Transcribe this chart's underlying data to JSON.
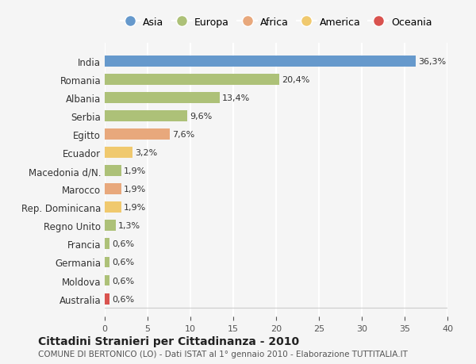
{
  "categories": [
    "India",
    "Romania",
    "Albania",
    "Serbia",
    "Egitto",
    "Ecuador",
    "Macedonia d/N.",
    "Marocco",
    "Rep. Dominicana",
    "Regno Unito",
    "Francia",
    "Germania",
    "Moldova",
    "Australia"
  ],
  "values": [
    36.3,
    20.4,
    13.4,
    9.6,
    7.6,
    3.2,
    1.9,
    1.9,
    1.9,
    1.3,
    0.6,
    0.6,
    0.6,
    0.6
  ],
  "labels": [
    "36,3%",
    "20,4%",
    "13,4%",
    "9,6%",
    "7,6%",
    "3,2%",
    "1,9%",
    "1,9%",
    "1,9%",
    "1,3%",
    "0,6%",
    "0,6%",
    "0,6%",
    "0,6%"
  ],
  "colors": [
    "#6699cc",
    "#adc178",
    "#adc178",
    "#adc178",
    "#e8a87c",
    "#f0c96e",
    "#adc178",
    "#e8a87c",
    "#f0c96e",
    "#adc178",
    "#adc178",
    "#adc178",
    "#adc178",
    "#d9534f"
  ],
  "continent_colors": {
    "Asia": "#6699cc",
    "Europa": "#adc178",
    "Africa": "#e8a87c",
    "America": "#f0c96e",
    "Oceania": "#d9534f"
  },
  "legend_labels": [
    "Asia",
    "Europa",
    "Africa",
    "America",
    "Oceania"
  ],
  "title": "Cittadini Stranieri per Cittadinanza - 2010",
  "subtitle": "COMUNE DI BERTONICO (LO) - Dati ISTAT al 1° gennaio 2010 - Elaborazione TUTTITALIA.IT",
  "xlim": [
    0,
    40
  ],
  "xticks": [
    0,
    5,
    10,
    15,
    20,
    25,
    30,
    35,
    40
  ],
  "background_color": "#f5f5f5",
  "grid_color": "#ffffff",
  "bar_height": 0.6
}
